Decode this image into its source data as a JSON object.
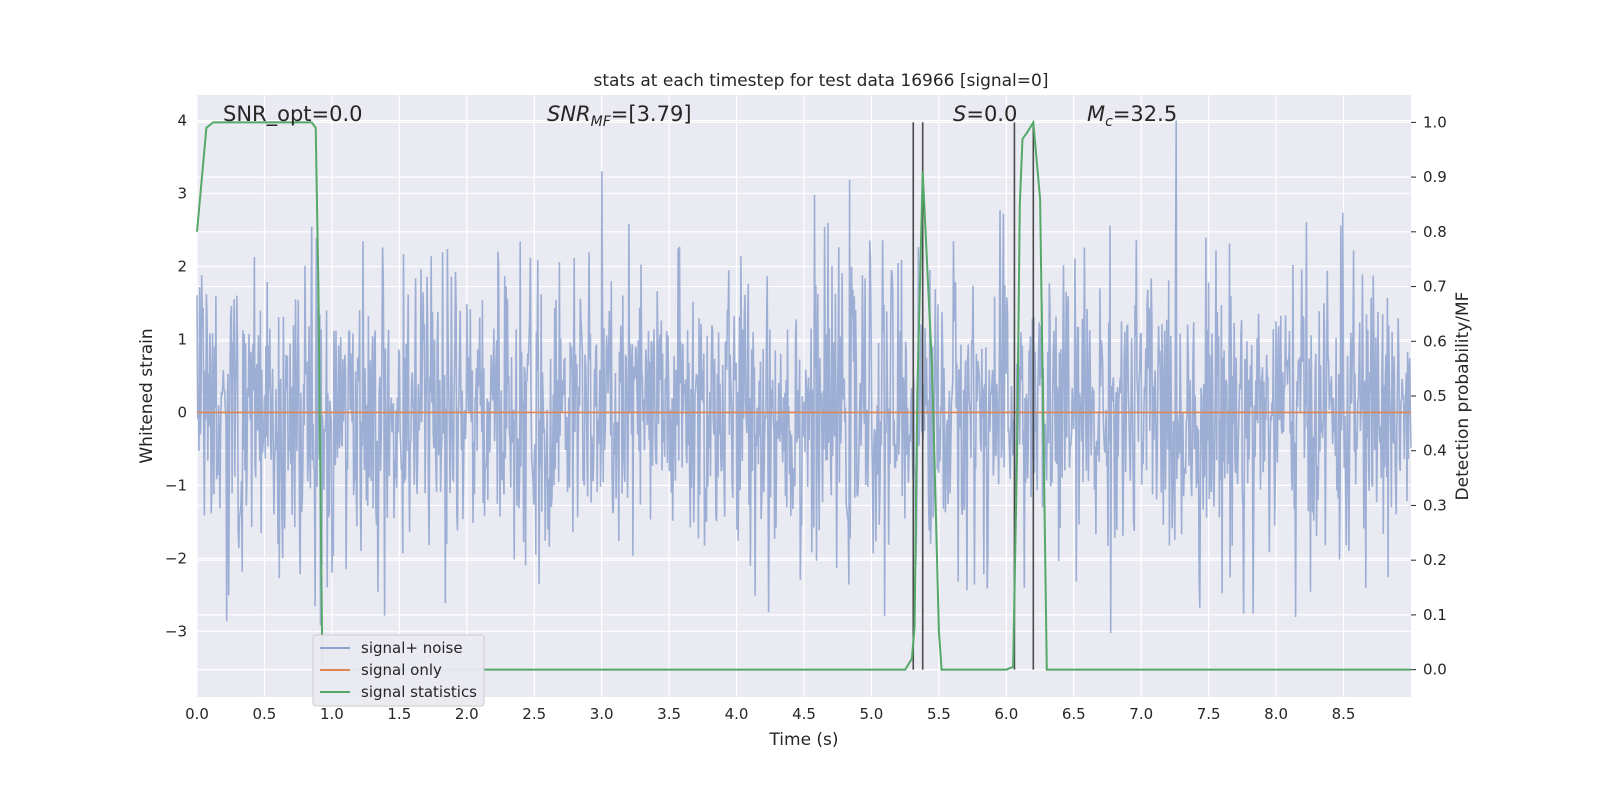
{
  "chart_data": {
    "type": "line",
    "title": "stats at each timestep for test data 16966 [signal=0]",
    "xlabel": "Time (s)",
    "ylabel_left": "Whitened strain",
    "ylabel_right": "Detection probability/MF",
    "xlim": [
      0.0,
      9.0
    ],
    "ylim_left": [
      -3.9,
      4.35
    ],
    "ylim_right": [
      -0.05,
      1.05
    ],
    "x_ticks": [
      "0.0",
      "0.5",
      "1.0",
      "1.5",
      "2.0",
      "2.5",
      "3.0",
      "3.5",
      "4.0",
      "4.5",
      "5.0",
      "5.5",
      "6.0",
      "6.5",
      "7.0",
      "7.5",
      "8.0",
      "8.5"
    ],
    "y_ticks_left": [
      "4",
      "3",
      "2",
      "1",
      "0",
      "−1",
      "−2",
      "−3"
    ],
    "y_ticks_right": [
      "1.0",
      "0.9",
      "0.8",
      "0.7",
      "0.6",
      "0.5",
      "0.4",
      "0.3",
      "0.2",
      "0.1",
      "0.0"
    ],
    "grid": true,
    "legend_position": "lower-left",
    "colors": {
      "signal_noise": "#8fa3cf",
      "signal_only": "#dd8452",
      "signal_statistics": "#55a868",
      "vlines": "#4a4a4a",
      "axes_bg": "#eaeaf2",
      "grid": "#ffffff"
    },
    "annotations": [
      {
        "text": "SNR_opt=0.0"
      },
      {
        "text": "SNR",
        "sub": "MF",
        "rest": "=[3.79]"
      },
      {
        "text": "S",
        "rest": "=0.0"
      },
      {
        "text": "M",
        "sub": "c",
        "rest": "=32.5"
      }
    ],
    "series": [
      {
        "name": "signal+ noise",
        "kind": "noise",
        "amplitude_sigma": 1.0,
        "peak_max": 4.0,
        "peak_min": -3.6,
        "n_samples": 1800
      },
      {
        "name": "signal only",
        "kind": "flat",
        "value": 0.0
      },
      {
        "name": "signal statistics",
        "kind": "prob",
        "x": [
          0.0,
          0.07,
          0.12,
          0.2,
          0.3,
          0.5,
          0.7,
          0.85,
          0.88,
          0.9,
          0.93,
          0.97,
          1.0,
          1.5,
          2.0,
          3.0,
          4.0,
          5.0,
          5.25,
          5.3,
          5.32,
          5.34,
          5.38,
          5.45,
          5.5,
          5.52,
          5.55,
          5.6,
          5.7,
          5.8,
          6.0,
          6.05,
          6.08,
          6.1,
          6.12,
          6.15,
          6.2,
          6.25,
          6.3,
          6.35,
          6.5,
          7.0,
          8.0,
          9.0
        ],
        "values": [
          0.8,
          0.99,
          1.0,
          1.0,
          1.0,
          1.0,
          1.0,
          1.0,
          0.99,
          0.7,
          0.0,
          0.0,
          0.0,
          0.0,
          0.0,
          0.0,
          0.0,
          0.0,
          0.0,
          0.02,
          0.08,
          0.5,
          0.91,
          0.55,
          0.07,
          0.0,
          0.0,
          0.0,
          0.0,
          0.0,
          0.0,
          0.005,
          0.4,
          0.85,
          0.97,
          0.98,
          1.0,
          0.86,
          0.0,
          0.0,
          0.0,
          0.0,
          0.0,
          0.0
        ]
      }
    ],
    "vlines": [
      5.31,
      5.38,
      6.06,
      6.2
    ]
  }
}
